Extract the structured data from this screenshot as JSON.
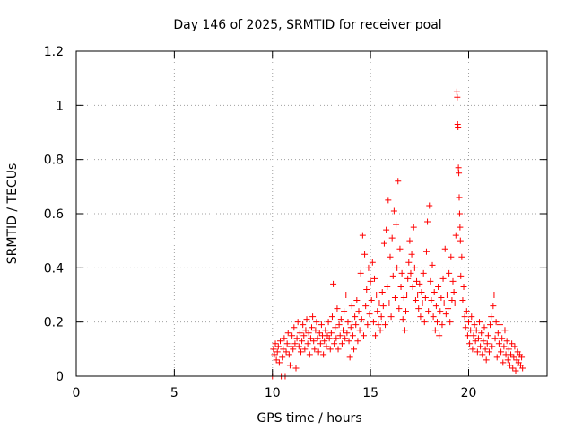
{
  "chart_data": {
    "type": "scatter",
    "title": "Day 146 of 2025, SRMTID for receiver poal",
    "xlabel": "GPS time / hours",
    "ylabel": "SRMTID / TECUs",
    "xlim": [
      0,
      24
    ],
    "ylim": [
      0,
      1.2
    ],
    "xticks": [
      0,
      5,
      10,
      15,
      20
    ],
    "xtick_labels": [
      "0",
      "5",
      "10",
      "15",
      "20"
    ],
    "yticks": [
      0,
      0.2,
      0.4,
      0.6,
      0.8,
      1,
      1.2
    ],
    "ytick_labels": [
      "0",
      "0.2",
      "0.4",
      "0.6",
      "0.8",
      "1",
      "1.2"
    ],
    "grid": true,
    "marker": "plus",
    "series_color": "#ff0000",
    "series": [
      {
        "name": "SRMTID",
        "points": [
          [
            10.0,
            0.0
          ],
          [
            10.05,
            0.1
          ],
          [
            10.1,
            0.08
          ],
          [
            10.15,
            0.12
          ],
          [
            10.2,
            0.06
          ],
          [
            10.25,
            0.09
          ],
          [
            10.3,
            0.11
          ],
          [
            10.35,
            0.05
          ],
          [
            10.4,
            0.13
          ],
          [
            10.45,
            0.0
          ],
          [
            10.5,
            0.07
          ],
          [
            10.55,
            0.1
          ],
          [
            10.6,
            0.14
          ],
          [
            10.65,
            0.0
          ],
          [
            10.7,
            0.09
          ],
          [
            10.75,
            0.12
          ],
          [
            10.8,
            0.16
          ],
          [
            10.85,
            0.08
          ],
          [
            10.9,
            0.04
          ],
          [
            10.95,
            0.11
          ],
          [
            11.0,
            0.15
          ],
          [
            11.05,
            0.1
          ],
          [
            11.1,
            0.18
          ],
          [
            11.15,
            0.12
          ],
          [
            11.2,
            0.03
          ],
          [
            11.25,
            0.14
          ],
          [
            11.3,
            0.2
          ],
          [
            11.35,
            0.11
          ],
          [
            11.4,
            0.16
          ],
          [
            11.45,
            0.09
          ],
          [
            11.5,
            0.13
          ],
          [
            11.55,
            0.19
          ],
          [
            11.6,
            0.15
          ],
          [
            11.65,
            0.1
          ],
          [
            11.7,
            0.17
          ],
          [
            11.75,
            0.21
          ],
          [
            11.8,
            0.12
          ],
          [
            11.85,
            0.16
          ],
          [
            11.9,
            0.08
          ],
          [
            11.95,
            0.14
          ],
          [
            12.0,
            0.18
          ],
          [
            12.05,
            0.22
          ],
          [
            12.1,
            0.13
          ],
          [
            12.15,
            0.1
          ],
          [
            12.2,
            0.17
          ],
          [
            12.25,
            0.2
          ],
          [
            12.3,
            0.14
          ],
          [
            12.35,
            0.09
          ],
          [
            12.4,
            0.16
          ],
          [
            12.45,
            0.12
          ],
          [
            12.5,
            0.19
          ],
          [
            12.55,
            0.15
          ],
          [
            12.6,
            0.08
          ],
          [
            12.65,
            0.13
          ],
          [
            12.7,
            0.17
          ],
          [
            12.75,
            0.11
          ],
          [
            12.8,
            0.15
          ],
          [
            12.85,
            0.2
          ],
          [
            12.9,
            0.14
          ],
          [
            12.95,
            0.1
          ],
          [
            13.0,
            0.16
          ],
          [
            13.05,
            0.22
          ],
          [
            13.1,
            0.34
          ],
          [
            13.15,
            0.12
          ],
          [
            13.2,
            0.18
          ],
          [
            13.25,
            0.14
          ],
          [
            13.3,
            0.25
          ],
          [
            13.35,
            0.1
          ],
          [
            13.4,
            0.19
          ],
          [
            13.45,
            0.15
          ],
          [
            13.5,
            0.21
          ],
          [
            13.55,
            0.12
          ],
          [
            13.6,
            0.17
          ],
          [
            13.65,
            0.24
          ],
          [
            13.7,
            0.14
          ],
          [
            13.75,
            0.3
          ],
          [
            13.8,
            0.16
          ],
          [
            13.85,
            0.2
          ],
          [
            13.9,
            0.13
          ],
          [
            13.95,
            0.07
          ],
          [
            14.0,
            0.18
          ],
          [
            14.05,
            0.26
          ],
          [
            14.1,
            0.15
          ],
          [
            14.15,
            0.1
          ],
          [
            14.2,
            0.22
          ],
          [
            14.25,
            0.19
          ],
          [
            14.3,
            0.28
          ],
          [
            14.35,
            0.13
          ],
          [
            14.4,
            0.24
          ],
          [
            14.45,
            0.17
          ],
          [
            14.5,
            0.38
          ],
          [
            14.55,
            0.21
          ],
          [
            14.6,
            0.52
          ],
          [
            14.65,
            0.15
          ],
          [
            14.7,
            0.45
          ],
          [
            14.75,
            0.26
          ],
          [
            14.8,
            0.32
          ],
          [
            14.85,
            0.19
          ],
          [
            14.9,
            0.4
          ],
          [
            14.95,
            0.23
          ],
          [
            15.0,
            0.35
          ],
          [
            15.05,
            0.28
          ],
          [
            15.1,
            0.42
          ],
          [
            15.15,
            0.2
          ],
          [
            15.2,
            0.36
          ],
          [
            15.25,
            0.15
          ],
          [
            15.3,
            0.3
          ],
          [
            15.35,
            0.24
          ],
          [
            15.4,
            0.19
          ],
          [
            15.45,
            0.27
          ],
          [
            15.5,
            0.17
          ],
          [
            15.55,
            0.22
          ],
          [
            15.6,
            0.31
          ],
          [
            15.65,
            0.26
          ],
          [
            15.7,
            0.49
          ],
          [
            15.75,
            0.19
          ],
          [
            15.8,
            0.54
          ],
          [
            15.85,
            0.33
          ],
          [
            15.9,
            0.65
          ],
          [
            15.95,
            0.27
          ],
          [
            16.0,
            0.44
          ],
          [
            16.05,
            0.22
          ],
          [
            16.1,
            0.51
          ],
          [
            16.15,
            0.37
          ],
          [
            16.2,
            0.61
          ],
          [
            16.25,
            0.29
          ],
          [
            16.3,
            0.56
          ],
          [
            16.35,
            0.4
          ],
          [
            16.4,
            0.72
          ],
          [
            16.45,
            0.25
          ],
          [
            16.5,
            0.47
          ],
          [
            16.55,
            0.33
          ],
          [
            16.6,
            0.38
          ],
          [
            16.65,
            0.21
          ],
          [
            16.7,
            0.29
          ],
          [
            16.75,
            0.17
          ],
          [
            16.8,
            0.24
          ],
          [
            16.85,
            0.3
          ],
          [
            16.9,
            0.36
          ],
          [
            16.95,
            0.42
          ],
          [
            17.0,
            0.5
          ],
          [
            17.05,
            0.38
          ],
          [
            17.1,
            0.45
          ],
          [
            17.15,
            0.33
          ],
          [
            17.2,
            0.55
          ],
          [
            17.25,
            0.4
          ],
          [
            17.3,
            0.28
          ],
          [
            17.35,
            0.35
          ],
          [
            17.4,
            0.3
          ],
          [
            17.45,
            0.25
          ],
          [
            17.5,
            0.34
          ],
          [
            17.55,
            0.22
          ],
          [
            17.6,
            0.31
          ],
          [
            17.65,
            0.27
          ],
          [
            17.7,
            0.38
          ],
          [
            17.75,
            0.2
          ],
          [
            17.8,
            0.29
          ],
          [
            17.85,
            0.46
          ],
          [
            17.9,
            0.57
          ],
          [
            17.95,
            0.24
          ],
          [
            18.0,
            0.63
          ],
          [
            18.05,
            0.35
          ],
          [
            18.1,
            0.28
          ],
          [
            18.15,
            0.41
          ],
          [
            18.2,
            0.22
          ],
          [
            18.25,
            0.31
          ],
          [
            18.3,
            0.17
          ],
          [
            18.35,
            0.26
          ],
          [
            18.4,
            0.2
          ],
          [
            18.45,
            0.33
          ],
          [
            18.5,
            0.15
          ],
          [
            18.55,
            0.24
          ],
          [
            18.6,
            0.29
          ],
          [
            18.65,
            0.19
          ],
          [
            18.7,
            0.36
          ],
          [
            18.75,
            0.27
          ],
          [
            18.8,
            0.47
          ],
          [
            18.85,
            0.23
          ],
          [
            18.9,
            0.3
          ],
          [
            18.95,
            0.25
          ],
          [
            19.0,
            0.38
          ],
          [
            19.05,
            0.2
          ],
          [
            19.1,
            0.44
          ],
          [
            19.15,
            0.28
          ],
          [
            19.2,
            0.35
          ],
          [
            19.25,
            0.31
          ],
          [
            19.3,
            0.27
          ],
          [
            19.35,
            0.52
          ],
          [
            19.4,
            1.05
          ],
          [
            19.42,
            1.03
          ],
          [
            19.44,
            0.93
          ],
          [
            19.46,
            0.92
          ],
          [
            19.48,
            0.77
          ],
          [
            19.5,
            0.75
          ],
          [
            19.52,
            0.66
          ],
          [
            19.54,
            0.6
          ],
          [
            19.56,
            0.55
          ],
          [
            19.58,
            0.5
          ],
          [
            19.6,
            0.37
          ],
          [
            19.65,
            0.44
          ],
          [
            19.7,
            0.28
          ],
          [
            19.75,
            0.33
          ],
          [
            19.8,
            0.22
          ],
          [
            19.85,
            0.18
          ],
          [
            19.9,
            0.24
          ],
          [
            19.95,
            0.15
          ],
          [
            20.0,
            0.2
          ],
          [
            20.05,
            0.12
          ],
          [
            20.1,
            0.17
          ],
          [
            20.15,
            0.22
          ],
          [
            20.2,
            0.1
          ],
          [
            20.25,
            0.15
          ],
          [
            20.3,
            0.19
          ],
          [
            20.35,
            0.13
          ],
          [
            20.4,
            0.17
          ],
          [
            20.45,
            0.09
          ],
          [
            20.5,
            0.14
          ],
          [
            20.55,
            0.2
          ],
          [
            20.6,
            0.11
          ],
          [
            20.65,
            0.16
          ],
          [
            20.7,
            0.08
          ],
          [
            20.75,
            0.13
          ],
          [
            20.8,
            0.18
          ],
          [
            20.85,
            0.1
          ],
          [
            20.9,
            0.06
          ],
          [
            20.95,
            0.12
          ],
          [
            21.0,
            0.15
          ],
          [
            21.05,
            0.09
          ],
          [
            21.1,
            0.19
          ],
          [
            21.15,
            0.22
          ],
          [
            21.2,
            0.11
          ],
          [
            21.25,
            0.26
          ],
          [
            21.3,
            0.3
          ],
          [
            21.35,
            0.14
          ],
          [
            21.4,
            0.2
          ],
          [
            21.45,
            0.07
          ],
          [
            21.5,
            0.16
          ],
          [
            21.55,
            0.12
          ],
          [
            21.6,
            0.19
          ],
          [
            21.65,
            0.09
          ],
          [
            21.7,
            0.14
          ],
          [
            21.75,
            0.05
          ],
          [
            21.8,
            0.11
          ],
          [
            21.85,
            0.17
          ],
          [
            21.9,
            0.08
          ],
          [
            21.95,
            0.13
          ],
          [
            22.0,
            0.06
          ],
          [
            22.05,
            0.1
          ],
          [
            22.1,
            0.04
          ],
          [
            22.15,
            0.08
          ],
          [
            22.2,
            0.12
          ],
          [
            22.25,
            0.03
          ],
          [
            22.3,
            0.07
          ],
          [
            22.35,
            0.11
          ],
          [
            22.4,
            0.02
          ],
          [
            22.45,
            0.06
          ],
          [
            22.5,
            0.09
          ],
          [
            22.55,
            0.05
          ],
          [
            22.6,
            0.08
          ],
          [
            22.65,
            0.04
          ],
          [
            22.7,
            0.07
          ],
          [
            22.75,
            0.03
          ]
        ]
      }
    ]
  }
}
